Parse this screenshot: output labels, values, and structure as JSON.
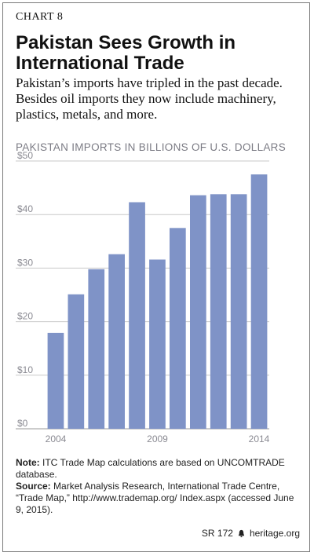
{
  "header": {
    "chart_number": "CHART 8",
    "title": "Pakistan Sees Growth in International Trade",
    "subtitle": "Pakistan’s imports have tripled in the past decade. Besides oil imports they now include machinery, plastics, metals, and more."
  },
  "chart_data": {
    "type": "bar",
    "title": "PAKISTAN IMPORTS IN BILLIONS OF U.S. DOLLARS",
    "categories": [
      "2004",
      "2005",
      "2006",
      "2007",
      "2008",
      "2009",
      "2010",
      "2011",
      "2012",
      "2013",
      "2014"
    ],
    "values": [
      17.9,
      25.1,
      29.8,
      32.6,
      42.3,
      31.6,
      37.5,
      43.6,
      43.8,
      43.8,
      47.5
    ],
    "x_tick_labels": [
      "2004",
      "",
      "",
      "",
      "",
      "2009",
      "",
      "",
      "",
      "",
      "2014"
    ],
    "y_ticks": [
      "$0",
      "$10",
      "$20",
      "$30",
      "$40",
      "$50"
    ],
    "y_tick_values": [
      0,
      10,
      20,
      30,
      40,
      50
    ],
    "ylim": [
      0,
      50
    ],
    "bar_color": "#7f93c7",
    "grid": true
  },
  "notes": {
    "note_label": "Note:",
    "note_text": "ITC Trade Map calculations are based on UNCOMTRADE database.",
    "source_label": "Source:",
    "source_text": "Market Analysis Research, International Trade Centre, “Trade Map,” http://www.trademap.org/ Index.aspx (accessed June 9, 2015)."
  },
  "footer": {
    "report_id": "SR 172",
    "logo_icon": "bell-icon",
    "site": "heritage.org"
  }
}
